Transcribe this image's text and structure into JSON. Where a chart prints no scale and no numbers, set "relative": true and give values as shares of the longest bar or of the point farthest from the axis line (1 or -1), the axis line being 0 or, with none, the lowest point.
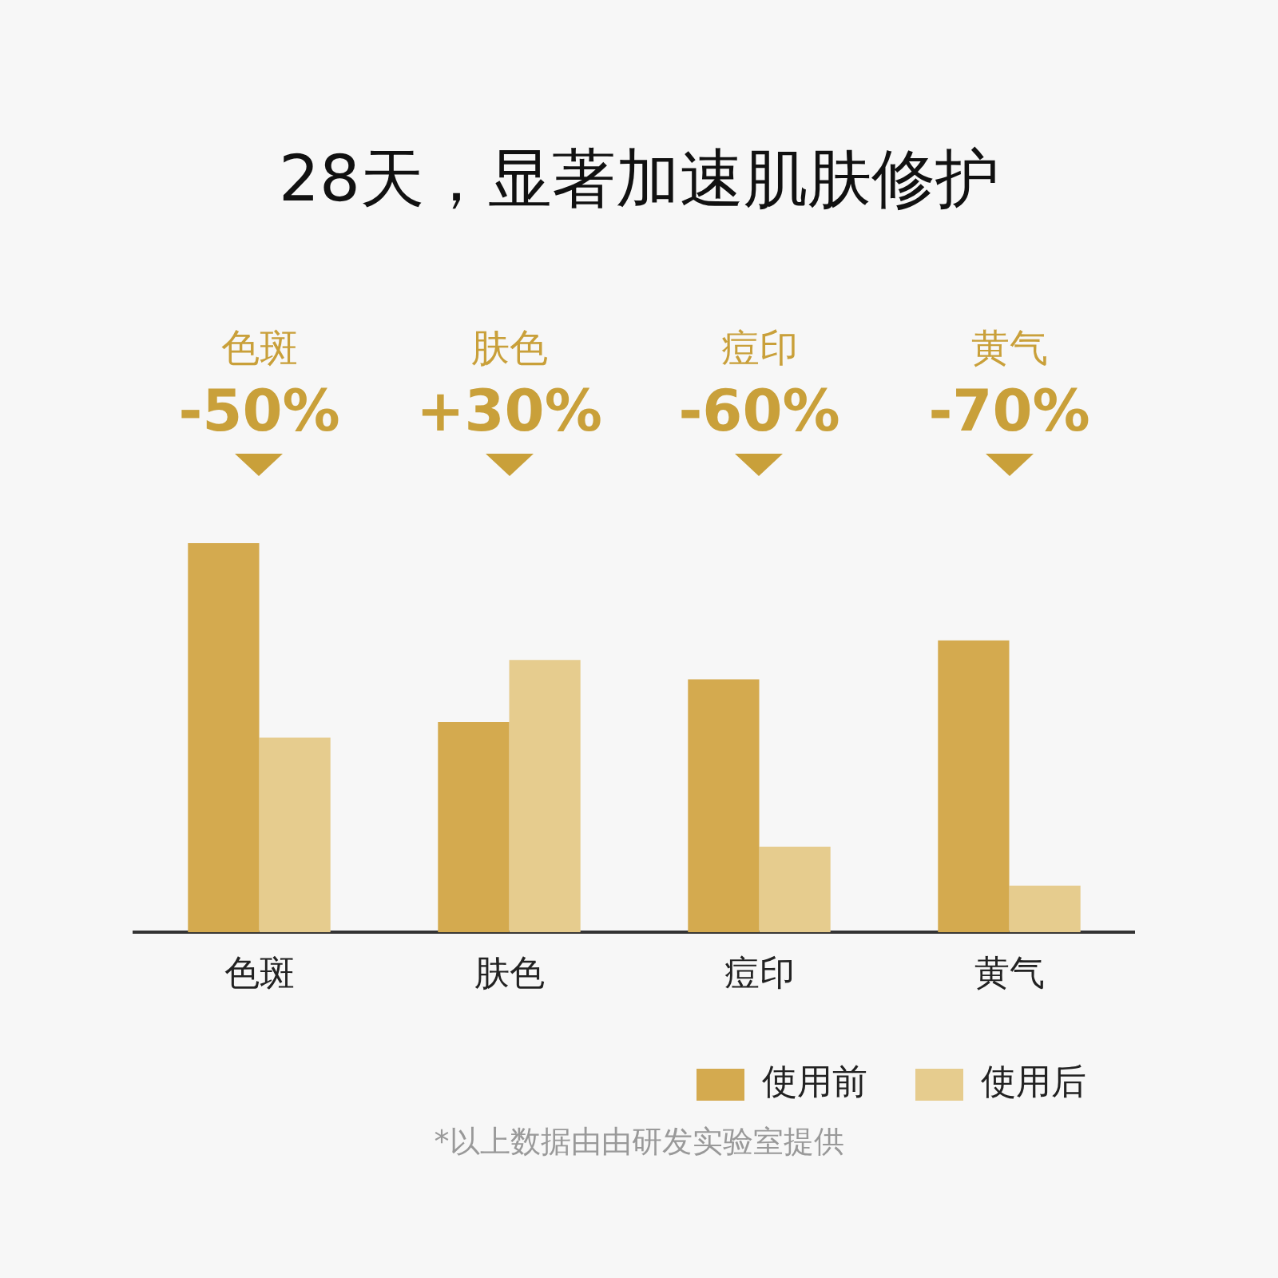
{
  "chart_data": {
    "type": "bar",
    "title": "28天，显著加速肌肤修护",
    "categories": [
      "色斑",
      "肤色",
      "痘印",
      "黄气"
    ],
    "relative": true,
    "legend": "bottom right",
    "grid": false,
    "series": [
      {
        "name": "使用前",
        "color": "#d4aa4f",
        "values": [
          1,
          0.54,
          0.65,
          0.75
        ]
      },
      {
        "name": "使用后",
        "color": "#e6cc8e",
        "values": [
          0.5,
          0.7,
          0.22,
          0.12
        ]
      }
    ],
    "annotations": [
      "色斑",
      "-50%",
      "肤色",
      "+30%",
      "痘印",
      "-60%",
      "黄气",
      "-70%",
      "*以上数据由由研发实验室提供"
    ]
  }
}
